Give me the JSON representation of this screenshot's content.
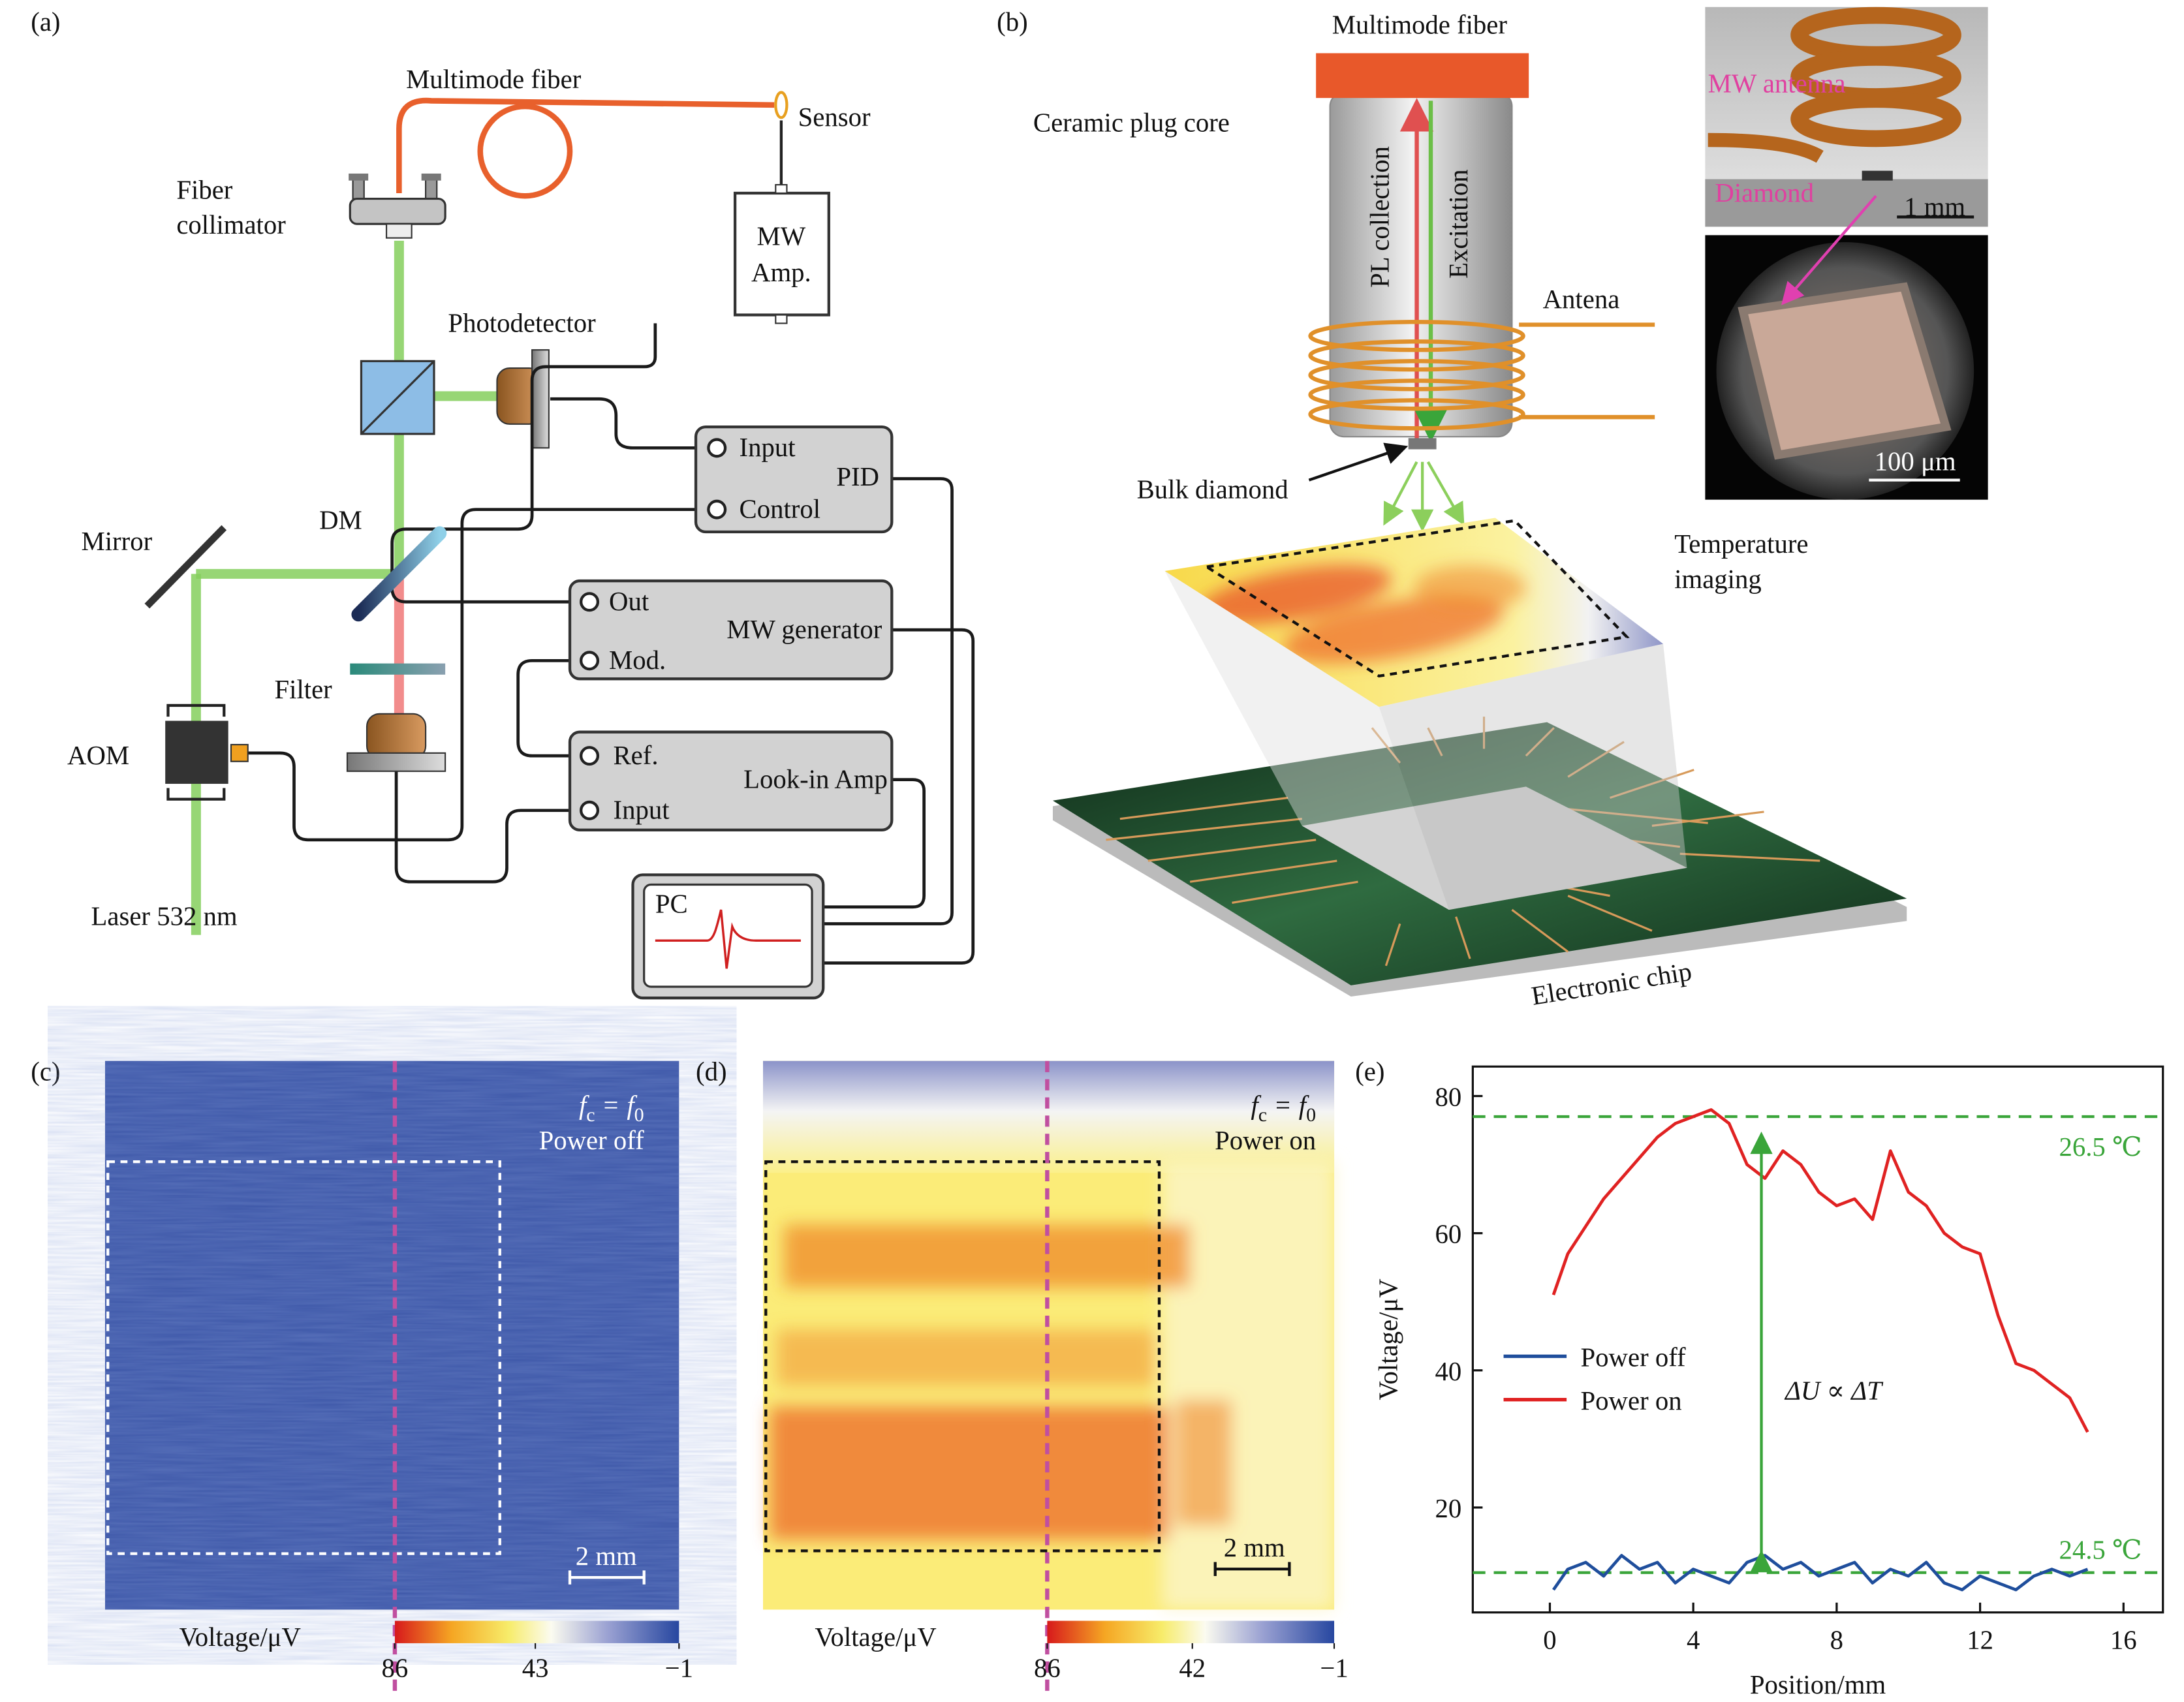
{
  "panel_a": {
    "label": "(a)",
    "multimode_fiber": "Multimode fiber",
    "sensor": "Sensor",
    "fiber_collimator": [
      "Fiber",
      "collimator"
    ],
    "mw_amp": [
      "MW",
      "Amp."
    ],
    "photodetector": "Photodetector",
    "pid": {
      "input": "Input",
      "name": "PID",
      "control": "Control"
    },
    "mirror": "Mirror",
    "dm": "DM",
    "mw_generator": {
      "out": "Out",
      "name": "MW generator",
      "mod": "Mod."
    },
    "filter": "Filter",
    "aom": "AOM",
    "lockin": {
      "ref": "Ref.",
      "name": "Look-in Amp",
      "input": "Input"
    },
    "pc": "PC",
    "laser": "Laser 532 nm"
  },
  "panel_b": {
    "label": "(b)",
    "multimode_fiber": "Multimode fiber",
    "ceramic": "Ceramic plug core",
    "pl_collection": "PL collection",
    "excitation": "Excitation",
    "antenna": "Antena",
    "bulk_diamond": "Bulk diamond",
    "temperature_imaging": [
      "Temperature",
      "imaging"
    ],
    "chip": "Electronic chip",
    "photo_top": {
      "antenna": "MW antenna",
      "diamond": "Diamond",
      "scale": "1 mm"
    },
    "photo_bottom": {
      "scale": "100 μm"
    }
  },
  "panel_c": {
    "label": "(c)",
    "condition": {
      "lhs": "f",
      "lhs_sub": "c",
      "relation": "=",
      "rhs": "f",
      "rhs_sub": "0"
    },
    "power": "Power off",
    "scale": "2 mm",
    "colorbar": {
      "label": "Voltage/μV",
      "ticks": [
        86,
        43,
        {
          "value": -1,
          "label": "−1"
        }
      ]
    }
  },
  "panel_d": {
    "label": "(d)",
    "condition": {
      "lhs": "f",
      "lhs_sub": "c",
      "relation": "=",
      "rhs": "f",
      "rhs_sub": "0"
    },
    "power": "Power on",
    "scale": "2 mm",
    "colorbar": {
      "label": "Voltage/μV",
      "ticks": [
        86,
        42,
        {
          "value": -1,
          "label": "−1"
        }
      ]
    }
  },
  "chart_data": {
    "type": "line",
    "label": "(e)",
    "x_label": "Position/mm",
    "y_label": "Voltage/μV",
    "x": [
      0.1,
      0.5,
      1,
      1.5,
      2,
      2.5,
      3,
      3.5,
      4,
      4.5,
      5,
      5.5,
      6,
      6.5,
      7,
      7.5,
      8,
      8.5,
      9,
      9.5,
      10,
      10.5,
      11,
      11.5,
      12,
      12.5,
      13,
      13.5,
      14,
      14.5,
      15
    ],
    "series": [
      {
        "name": "Power off",
        "color": "#1f4e9c",
        "values": [
          8,
          11,
          12,
          10,
          13,
          11,
          12,
          9,
          11,
          10,
          9,
          12,
          13,
          11,
          12,
          10,
          11,
          12,
          9,
          11,
          10,
          12,
          9,
          8,
          10,
          9,
          8,
          10,
          11,
          10,
          11
        ]
      },
      {
        "name": "Power on",
        "color": "#e02222",
        "values": [
          51,
          57,
          61,
          65,
          68,
          71,
          74,
          76,
          77,
          78,
          76,
          70,
          68,
          72,
          70,
          66,
          64,
          65,
          62,
          72,
          66,
          64,
          60,
          58,
          57,
          48,
          41,
          40,
          38,
          36,
          31
        ]
      }
    ],
    "xlim": [
      -2.15,
      17.1
    ],
    "ylim": [
      4.7,
      84.3
    ],
    "xticks": [
      0,
      4,
      8,
      12,
      16
    ],
    "yticks": [
      20,
      40,
      60,
      80
    ],
    "legend": "center left",
    "reference_lines": [
      {
        "value": 77,
        "label": "26.5 ℃",
        "color": "#3aa53a"
      },
      {
        "value": 10.5,
        "label": "24.5 ℃",
        "color": "#3aa53a"
      }
    ],
    "annotation": {
      "text": "ΔU ∝ ΔT",
      "x": 5.9,
      "y_from": 13,
      "y_to": 74,
      "color": "#3aa53a"
    }
  }
}
